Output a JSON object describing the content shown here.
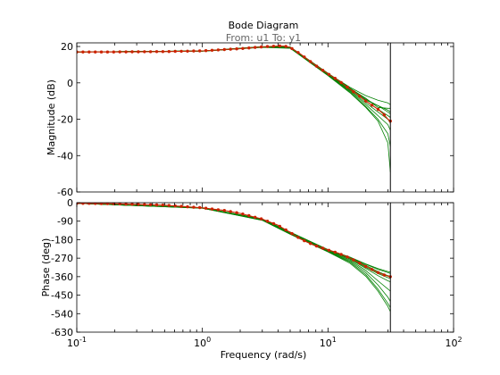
{
  "chart_data": {
    "type": "line",
    "title": "Bode Diagram",
    "subtitle": "From: u1  To: y1",
    "xlabel": "Frequency  (rad/s)",
    "xscale": "log",
    "xlim": [
      0.1,
      100
    ],
    "x_ticks": [
      {
        "value": 0.1,
        "base": "10",
        "exp": "-1"
      },
      {
        "value": 1,
        "base": "10",
        "exp": "0"
      },
      {
        "value": 10,
        "base": "10",
        "exp": "1"
      },
      {
        "value": 100,
        "base": "10",
        "exp": "2"
      }
    ],
    "nyquist_frequency": 31.4,
    "grid": false,
    "colors": {
      "nominal": "#cc2200",
      "uncertain": "#008000",
      "axes": "#000000",
      "subtitle": "#666666"
    },
    "panels": [
      {
        "id": "magnitude",
        "ylabel": "Magnitude (dB)",
        "ylim": [
          -60,
          22
        ],
        "yticks": [
          20,
          0,
          -20,
          -40,
          -60
        ],
        "ytick_labels": [
          "20",
          "0",
          "-20",
          "-40",
          "-60"
        ],
        "nominal": {
          "x": [
            0.1,
            0.2,
            0.5,
            1,
            2,
            3,
            4,
            4.5,
            5,
            6,
            7,
            8,
            10,
            12,
            15,
            18,
            20,
            25,
            28,
            30,
            31.4
          ],
          "y": [
            17,
            17,
            17.2,
            17.6,
            18.8,
            19.8,
            20.3,
            20.2,
            19.5,
            16,
            12.5,
            9.5,
            5,
            1.5,
            -3.5,
            -7.5,
            -10,
            -14.5,
            -17.5,
            -20,
            -21
          ]
        },
        "uncertain_samples": [
          {
            "x": [
              0.1,
              1,
              3,
              5,
              10,
              15,
              20,
              25,
              30,
              31.4
            ],
            "y": [
              17,
              17.5,
              19.6,
              19.3,
              5.2,
              -2.5,
              -7,
              -9.5,
              -11,
              -12
            ]
          },
          {
            "x": [
              0.1,
              1,
              3,
              5,
              10,
              15,
              20,
              25,
              30,
              31.4
            ],
            "y": [
              17,
              17.5,
              19.8,
              19.7,
              4.8,
              -3.5,
              -9.5,
              -12.5,
              -15,
              -16
            ]
          },
          {
            "x": [
              0.1,
              1,
              3,
              5,
              10,
              15,
              20,
              25,
              30,
              31.4
            ],
            "y": [
              17,
              17.5,
              19.7,
              19.5,
              5,
              -3,
              -8.5,
              -13.5,
              -14,
              -14
            ]
          },
          {
            "x": [
              0.1,
              1,
              3,
              5,
              10,
              15,
              20,
              25,
              30,
              31.4
            ],
            "y": [
              17,
              17.6,
              19.9,
              19.4,
              4.6,
              -4,
              -11,
              -16,
              -20,
              -22
            ]
          },
          {
            "x": [
              0.1,
              1,
              3,
              5,
              10,
              15,
              20,
              25,
              30,
              31.4
            ],
            "y": [
              17,
              17.6,
              19.8,
              19.6,
              5,
              -3.5,
              -10,
              -14.5,
              -18,
              -19
            ]
          },
          {
            "x": [
              0.1,
              1,
              3,
              5,
              10,
              15,
              20,
              25,
              30,
              31.4
            ],
            "y": [
              17,
              17.5,
              19.7,
              19.2,
              4.4,
              -4.5,
              -12,
              -18,
              -23,
              -26
            ]
          },
          {
            "x": [
              0.1,
              1,
              3,
              5,
              10,
              15,
              20,
              25,
              30,
              31.4
            ],
            "y": [
              17,
              17.5,
              19.6,
              19.1,
              4.2,
              -5,
              -13,
              -20,
              -28,
              -35
            ]
          },
          {
            "x": [
              0.1,
              1,
              3,
              5,
              10,
              15,
              20,
              25,
              30,
              31.4
            ],
            "y": [
              17,
              17.6,
              19.9,
              19.8,
              5.3,
              -3,
              -9,
              -12.5,
              -16,
              -17
            ]
          },
          {
            "x": [
              0.1,
              1,
              3,
              5,
              10,
              15,
              20,
              25,
              30,
              31.4
            ],
            "y": [
              17,
              17.4,
              19.5,
              19,
              4,
              -5.5,
              -13.5,
              -21,
              -33,
              -49
            ]
          }
        ]
      },
      {
        "id": "phase",
        "ylabel": "Phase (deg)",
        "ylim": [
          -630,
          0
        ],
        "yticks": [
          0,
          -90,
          -180,
          -270,
          -360,
          -450,
          -540,
          -630
        ],
        "ytick_labels": [
          "0",
          "-90",
          "-180",
          "-270",
          "-360",
          "-450",
          "-540",
          "-630"
        ],
        "nominal": {
          "x": [
            0.1,
            0.2,
            0.5,
            1,
            1.5,
            2,
            3,
            4,
            5,
            6,
            7,
            8,
            10,
            12,
            15,
            18,
            20,
            25,
            28,
            30,
            31.4
          ],
          "y": [
            -3,
            -5,
            -12,
            -25,
            -38,
            -52,
            -80,
            -110,
            -145,
            -175,
            -195,
            -210,
            -230,
            -245,
            -270,
            -295,
            -310,
            -340,
            -352,
            -357,
            -360
          ]
        },
        "uncertain_samples": [
          {
            "x": [
              0.1,
              1,
              3,
              5,
              10,
              15,
              20,
              25,
              30,
              31.4
            ],
            "y": [
              -3,
              -25,
              -80,
              -145,
              -230,
              -268,
              -300,
              -325,
              -340,
              -345
            ]
          },
          {
            "x": [
              0.1,
              1,
              3,
              5,
              10,
              15,
              20,
              25,
              30,
              31.4
            ],
            "y": [
              -3,
              -25,
              -80,
              -145,
              -230,
              -272,
              -315,
              -345,
              -365,
              -368
            ]
          },
          {
            "x": [
              0.1,
              1,
              3,
              5,
              10,
              15,
              20,
              25,
              30,
              31.4
            ],
            "y": [
              -3,
              -26,
              -82,
              -147,
              -232,
              -275,
              -320,
              -355,
              -380,
              -385
            ]
          },
          {
            "x": [
              0.1,
              1,
              3,
              5,
              10,
              15,
              20,
              25,
              30,
              31.4
            ],
            "y": [
              -3,
              -25,
              -80,
              -145,
              -230,
              -270,
              -305,
              -335,
              -355,
              -358
            ]
          },
          {
            "x": [
              0.1,
              1,
              3,
              5,
              10,
              15,
              20,
              25,
              30,
              31.4
            ],
            "y": [
              -3,
              -26,
              -83,
              -148,
              -234,
              -280,
              -330,
              -380,
              -420,
              -430
            ]
          },
          {
            "x": [
              0.1,
              1,
              3,
              5,
              10,
              15,
              20,
              25,
              30,
              31.4
            ],
            "y": [
              -3,
              -26,
              -84,
              -150,
              -236,
              -285,
              -340,
              -400,
              -460,
              -480
            ]
          },
          {
            "x": [
              0.1,
              1,
              3,
              5,
              10,
              15,
              20,
              25,
              30,
              31.4
            ],
            "y": [
              -3,
              -27,
              -85,
              -152,
              -238,
              -290,
              -350,
              -420,
              -490,
              -510
            ]
          },
          {
            "x": [
              0.1,
              1,
              3,
              5,
              10,
              15,
              20,
              25,
              30,
              31.4
            ],
            "y": [
              -3,
              -24,
              -79,
              -143,
              -228,
              -265,
              -298,
              -320,
              -335,
              -338
            ]
          },
          {
            "x": [
              0.1,
              1,
              3,
              5,
              10,
              15,
              20,
              25,
              30,
              31.4
            ],
            "y": [
              -3,
              -27,
              -86,
              -154,
              -240,
              -295,
              -358,
              -430,
              -505,
              -530
            ]
          }
        ]
      }
    ]
  }
}
